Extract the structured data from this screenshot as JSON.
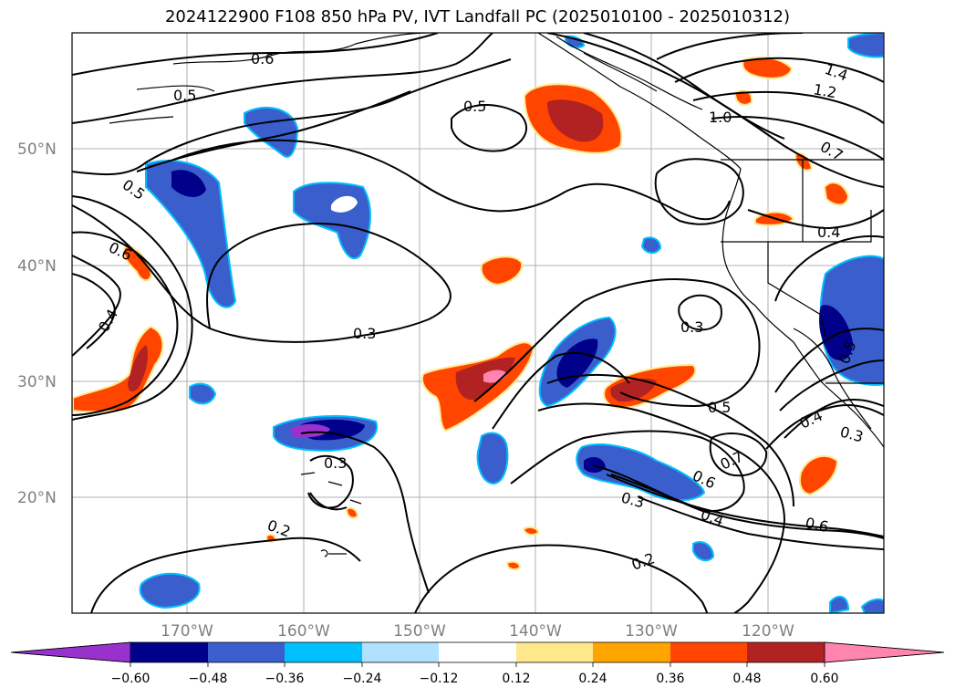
{
  "title": "2024122900 F108 850 hPa PV, IVT Landfall PC (2025010100 - 2025010312)",
  "lat_labels": [
    "50°N",
    "40°N",
    "30°N",
    "20°N"
  ],
  "lon_labels": [
    "170°W",
    "160°W",
    "150°W",
    "140°W",
    "130°W",
    "120°W"
  ],
  "colorbar": {
    "ticks": [
      "−0.60",
      "−0.48",
      "−0.36",
      "−0.24",
      "−0.12",
      "0.12",
      "0.24",
      "0.36",
      "0.48",
      "0.60"
    ],
    "colors": [
      "#9932CC",
      "#00008B",
      "#3A5FCD",
      "#00BFFF",
      "#B0E2FF",
      "#FFFFFF",
      "#FFE88C",
      "#FFA500",
      "#FF4500",
      "#B22222",
      "#FF85B0"
    ]
  },
  "contour_labels": [
    "0.6",
    "0.5",
    "0.5",
    "0.5",
    "0.6",
    "0.4",
    "0.3",
    "0.3",
    "0.3",
    "0.2",
    "0.2",
    "0.5",
    "0.6",
    "0.7",
    "0.4",
    "0.3",
    "0.6",
    "0.3",
    "0.4",
    "0.7",
    "1.0",
    "1.2",
    "1.4",
    "0.4",
    "0.5"
  ]
}
